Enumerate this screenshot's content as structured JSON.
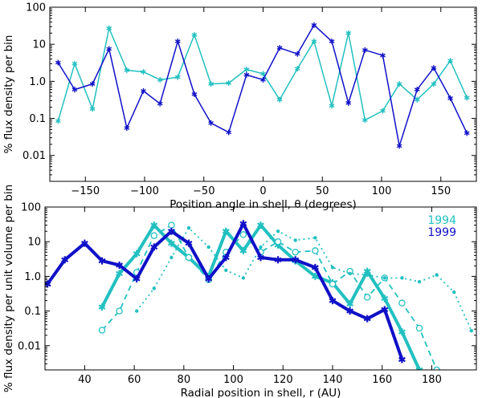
{
  "colors": {
    "cyan": "#22c0c0",
    "blue": "#1010c8"
  },
  "chart_data": [
    {
      "type": "line",
      "scale": "log-y",
      "xlabel": "Position angle in shell, θ (degrees)",
      "ylabel": "% flux density per bin",
      "xlim": [
        -180,
        180
      ],
      "ylim": [
        0.002,
        100
      ],
      "xticks": [
        "−150",
        "−100",
        "−50",
        "0",
        "50",
        "100",
        "150"
      ],
      "xtick_values": [
        -150,
        -100,
        -50,
        0,
        50,
        100,
        150
      ],
      "yticks": [
        "0.01",
        "0.1",
        "1.0",
        "10",
        "100"
      ],
      "ytick_values": [
        0.01,
        0.1,
        1,
        10,
        100
      ],
      "series": [
        {
          "color": "cyan",
          "x": [
            -173,
            -159,
            -144,
            -130,
            -115,
            -101,
            -87,
            -72,
            -58,
            -44,
            -29,
            -14,
            0,
            14,
            29,
            43,
            58,
            72,
            86,
            101,
            115,
            130,
            144,
            158,
            172
          ],
          "y": [
            0.085,
            3.0,
            0.18,
            27,
            2.0,
            1.8,
            1.1,
            1.3,
            18,
            0.85,
            0.9,
            2.1,
            1.6,
            0.32,
            2.2,
            12,
            0.22,
            20,
            0.09,
            0.16,
            0.85,
            0.32,
            0.85,
            3.6,
            0.36
          ]
        },
        {
          "color": "blue",
          "x": [
            -173,
            -159,
            -144,
            -130,
            -115,
            -101,
            -87,
            -72,
            -58,
            -44,
            -29,
            -14,
            0,
            14,
            29,
            43,
            58,
            72,
            86,
            101,
            115,
            130,
            144,
            158,
            172
          ],
          "y": [
            3.2,
            0.6,
            0.85,
            7.5,
            0.055,
            0.55,
            0.25,
            12,
            0.45,
            0.075,
            0.042,
            1.5,
            1.1,
            8,
            5.5,
            33,
            12,
            0.26,
            7,
            5,
            0.018,
            0.6,
            2.3,
            0.35,
            0.04
          ]
        }
      ]
    },
    {
      "type": "line",
      "scale": "log-y",
      "xlabel": "Radial position in shell, r (AU)",
      "ylabel": "% flux density per unit volume per bin",
      "xlim": [
        24,
        198
      ],
      "ylim": [
        0.002,
        100
      ],
      "xticks": [
        "40",
        "60",
        "80",
        "100",
        "120",
        "140",
        "160",
        "180"
      ],
      "xtick_values": [
        40,
        60,
        80,
        100,
        120,
        140,
        160,
        180
      ],
      "yticks": [
        "0.01",
        "0.1",
        "1.0",
        "10",
        "100"
      ],
      "ytick_values": [
        0.01,
        0.1,
        1,
        10,
        100
      ],
      "legend": {
        "position": "top-right",
        "entries": [
          {
            "name": "1994",
            "color": "cyan"
          },
          {
            "name": "1999",
            "color": "blue"
          }
        ]
      },
      "series": [
        {
          "name": "1994",
          "color": "cyan",
          "style": "thick-solid",
          "marker": "star",
          "x": [
            47,
            54,
            61,
            68,
            75,
            82,
            90,
            97,
            104,
            111,
            118,
            125,
            133,
            140,
            147,
            154,
            161,
            168,
            175
          ],
          "y": [
            0.13,
            1.2,
            4.5,
            30,
            9,
            3.5,
            1.0,
            20,
            5.5,
            30,
            8,
            2.8,
            1.0,
            0.65,
            0.16,
            1.4,
            0.23,
            0.025,
            0.002
          ]
        },
        {
          "name": "1994",
          "color": "cyan",
          "style": "dashed",
          "marker": "circle",
          "x": [
            47,
            54,
            61,
            68,
            75,
            82,
            90,
            97,
            104,
            111,
            118,
            125,
            133,
            140,
            147,
            154,
            161,
            168,
            175,
            182
          ],
          "y": [
            0.028,
            0.1,
            1.3,
            15,
            30,
            3.5,
            0.8,
            5,
            16,
            5,
            10,
            5,
            5.5,
            0.6,
            1.4,
            0.25,
            0.9,
            0.17,
            0.032,
            0.002
          ]
        },
        {
          "name": "1994",
          "color": "cyan",
          "style": "dotted",
          "marker": "dot",
          "x": [
            61,
            68,
            75,
            82,
            90,
            97,
            104,
            111,
            118,
            125,
            133,
            140,
            147,
            154,
            161,
            168,
            175,
            182,
            189,
            196
          ],
          "y": [
            0.1,
            0.45,
            3.5,
            25,
            7,
            1.5,
            0.9,
            7,
            20,
            11,
            13,
            1.8,
            1.2,
            1.1,
            0.9,
            0.9,
            0.7,
            1.1,
            0.35,
            0.027
          ]
        },
        {
          "name": "1999",
          "color": "blue",
          "style": "thick-solid",
          "marker": "star",
          "x": [
            25,
            32,
            40,
            47,
            54,
            61,
            68,
            75,
            82,
            90,
            97,
            104,
            111,
            118,
            125,
            133,
            140,
            147,
            154,
            161,
            168
          ],
          "y": [
            0.6,
            3.0,
            9.0,
            2.8,
            2.1,
            0.85,
            7,
            20,
            9,
            0.85,
            3.5,
            33,
            3.5,
            3.0,
            3.0,
            1.8,
            0.2,
            0.1,
            0.06,
            0.11,
            0.004
          ]
        }
      ]
    }
  ]
}
